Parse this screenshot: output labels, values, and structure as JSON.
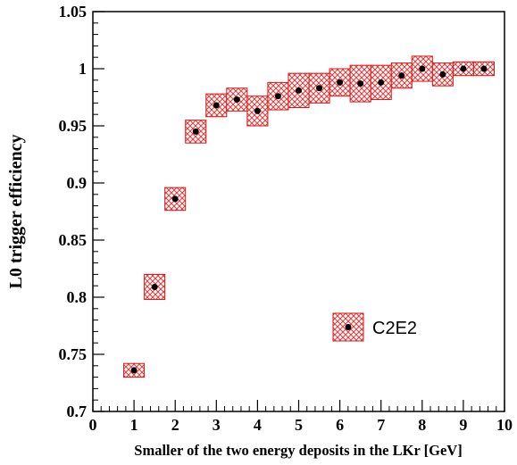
{
  "chart_data": {
    "type": "scatter",
    "xlabel": "Smaller of the two energy deposits in the LKr [GeV]",
    "ylabel": "L0 trigger efficiency",
    "xlim": [
      0,
      10
    ],
    "ylim": [
      0.7,
      1.05
    ],
    "xticks": [
      "0",
      "1",
      "2",
      "3",
      "4",
      "5",
      "6",
      "7",
      "8",
      "9",
      "10"
    ],
    "yticks": [
      "0.7",
      "0.75",
      "0.8",
      "0.85",
      "0.9",
      "0.95",
      "1",
      "1.05"
    ],
    "legend": {
      "position": "bottom-right",
      "label": "C2E2"
    },
    "colors": {
      "band_fill": "#ee5555",
      "band_edge": "#dd1111",
      "marker": "#000000"
    },
    "series": [
      {
        "name": "C2E2",
        "x": [
          1.0,
          1.5,
          2.0,
          2.5,
          3.0,
          3.5,
          4.0,
          4.5,
          5.0,
          5.5,
          6.0,
          6.5,
          7.0,
          7.5,
          8.0,
          8.5,
          9.0,
          9.5
        ],
        "y": [
          0.736,
          0.809,
          0.886,
          0.945,
          0.968,
          0.973,
          0.963,
          0.976,
          0.981,
          0.983,
          0.988,
          0.987,
          0.988,
          0.994,
          1.0,
          0.995,
          1.0,
          1.0
        ],
        "y_err": [
          0.006,
          0.011,
          0.01,
          0.01,
          0.01,
          0.01,
          0.013,
          0.012,
          0.015,
          0.013,
          0.012,
          0.016,
          0.015,
          0.011,
          0.011,
          0.01,
          0.006,
          0.006
        ]
      }
    ]
  }
}
